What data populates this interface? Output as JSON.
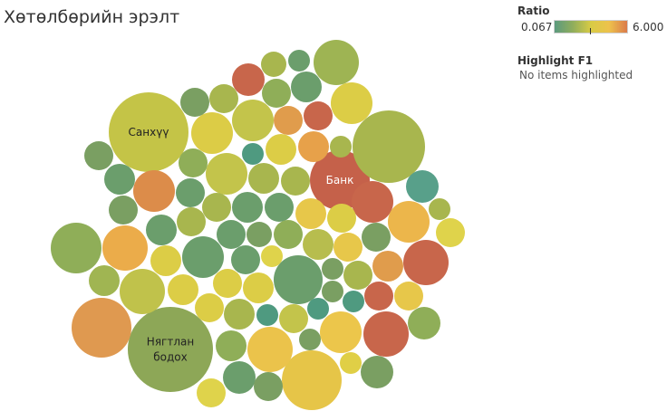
{
  "title": "Хөтөлбөрийн эрэлт",
  "legend": {
    "title": "Ratio",
    "min_label": "0.067",
    "max_label": "6.000",
    "colors": [
      "#5b9a7e",
      "#8fad5c",
      "#d8cb45",
      "#edc24c",
      "#db7b4b"
    ]
  },
  "highlight": {
    "title": "Highlight F1",
    "text": "No items highlighted"
  },
  "chart_data": {
    "type": "packed-bubble",
    "title": "Хөтөлбөрийн эрэлт",
    "color_measure": "Ratio",
    "color_range": [
      0.067,
      6.0
    ],
    "labeled_bubbles": [
      {
        "label": "Санхүү",
        "color": "#c4c447"
      },
      {
        "label": "Банк",
        "color": "#c5614a"
      },
      {
        "label": "Нягтлан бодох",
        "color": "#8da757"
      }
    ],
    "bubbles": [
      [
        164,
        146,
        44,
        "#c4c447",
        "Санхүү"
      ],
      [
        375,
        199,
        33,
        "#c5614a",
        "Банк"
      ],
      [
        188,
        386,
        47,
        "#8da757",
        "Нягтлан бодох"
      ],
      [
        429,
        162,
        40,
        "#a8b64e",
        ""
      ],
      [
        112,
        362,
        33,
        "#df9950",
        ""
      ],
      [
        344,
        420,
        33,
        "#e6c548",
        ""
      ],
      [
        84,
        274,
        28,
        "#8fae58",
        ""
      ],
      [
        329,
        309,
        27,
        "#6b9e6c",
        ""
      ],
      [
        371,
        69,
        25,
        "#9eb453",
        ""
      ],
      [
        388,
        114,
        23,
        "#dccd46",
        ""
      ],
      [
        470,
        290,
        25,
        "#c8664b",
        ""
      ],
      [
        411,
        223,
        23,
        "#c8664b",
        ""
      ],
      [
        451,
        245,
        23,
        "#ecb64b",
        ""
      ],
      [
        426,
        369,
        25,
        "#c8664b",
        ""
      ],
      [
        170,
        211,
        23,
        "#dc8c4a",
        ""
      ],
      [
        138,
        274,
        25,
        "#ebac4a",
        ""
      ],
      [
        157,
        322,
        25,
        "#c0c24b",
        ""
      ],
      [
        234,
        147,
        23,
        "#dccc46",
        ""
      ],
      [
        250,
        192,
        23,
        "#c3c44b",
        ""
      ],
      [
        224,
        284,
        23,
        "#6b9e6c",
        ""
      ],
      [
        279,
        133,
        23,
        "#c3c44b",
        ""
      ],
      [
        298,
        386,
        25,
        "#ebc34b",
        ""
      ],
      [
        376,
        367,
        23,
        "#ecc64b",
        ""
      ],
      [
        466,
        206,
        18,
        "#58a08a",
        ""
      ],
      [
        497,
        257,
        16,
        "#dfd34b",
        ""
      ],
      [
        468,
        357,
        18,
        "#8fae58",
        ""
      ],
      [
        416,
        411,
        18,
        "#7a9f62",
        ""
      ],
      [
        387,
        401,
        12,
        "#e0cf46",
        ""
      ],
      [
        264,
        417,
        18,
        "#6b9e6c",
        ""
      ],
      [
        233,
        434,
        16,
        "#dfd34b",
        ""
      ],
      [
        296,
        427,
        16,
        "#7a9f62",
        ""
      ],
      [
        342,
        375,
        12,
        "#7a9f62",
        ""
      ],
      [
        274,
        88,
        18,
        "#c8664b",
        ""
      ],
      [
        302,
        71,
        14,
        "#a8b64e",
        ""
      ],
      [
        330,
        67,
        12,
        "#6b9e6c",
        ""
      ],
      [
        338,
        96,
        17,
        "#6b9e6c",
        ""
      ],
      [
        305,
        103,
        16,
        "#8fae58",
        ""
      ],
      [
        318,
        133,
        16,
        "#e09c4c",
        ""
      ],
      [
        351,
        128,
        16,
        "#c8664b",
        ""
      ],
      [
        310,
        165,
        17,
        "#dccd46",
        ""
      ],
      [
        346,
        162,
        17,
        "#e7a14a",
        ""
      ],
      [
        376,
        162,
        12,
        "#a8b64e",
        ""
      ],
      [
        279,
        170,
        12,
        "#4f9a80",
        ""
      ],
      [
        215,
        113,
        16,
        "#7a9f62",
        ""
      ],
      [
        247,
        109,
        16,
        "#a8b64e",
        ""
      ],
      [
        213,
        180,
        16,
        "#8fae58",
        ""
      ],
      [
        109,
        172,
        16,
        "#7a9f62",
        ""
      ],
      [
        132,
        198,
        17,
        "#6b9e6c",
        ""
      ],
      [
        136,
        232,
        16,
        "#7a9f62",
        ""
      ],
      [
        210,
        213,
        16,
        "#6b9e6c",
        ""
      ],
      [
        178,
        254,
        17,
        "#6b9e6c",
        ""
      ],
      [
        211,
        245,
        16,
        "#a8b64e",
        ""
      ],
      [
        183,
        288,
        17,
        "#dccd46",
        ""
      ],
      [
        115,
        310,
        17,
        "#a0b552",
        ""
      ],
      [
        202,
        320,
        17,
        "#dccd46",
        ""
      ],
      [
        231,
        340,
        16,
        "#dccd46",
        ""
      ],
      [
        239,
        229,
        16,
        "#a8b64e",
        ""
      ],
      [
        273,
        229,
        17,
        "#6b9e6c",
        ""
      ],
      [
        291,
        197,
        17,
        "#a8b64e",
        ""
      ],
      [
        326,
        200,
        16,
        "#a8b64e",
        ""
      ],
      [
        308,
        229,
        16,
        "#6b9e6c",
        ""
      ],
      [
        343,
        236,
        17,
        "#e7c74a",
        ""
      ],
      [
        377,
        241,
        16,
        "#dccd46",
        ""
      ],
      [
        255,
        259,
        16,
        "#6b9e6c",
        ""
      ],
      [
        286,
        259,
        14,
        "#7a9f62",
        ""
      ],
      [
        318,
        259,
        16,
        "#8fae58",
        ""
      ],
      [
        351,
        270,
        17,
        "#b7bd4e",
        ""
      ],
      [
        384,
        273,
        16,
        "#e7c74a",
        ""
      ],
      [
        415,
        262,
        16,
        "#7a9f62",
        ""
      ],
      [
        271,
        287,
        16,
        "#6b9e6c",
        ""
      ],
      [
        300,
        283,
        12,
        "#dfd34b",
        ""
      ],
      [
        367,
        297,
        12,
        "#7a9f62",
        ""
      ],
      [
        395,
        304,
        16,
        "#a8b64e",
        ""
      ],
      [
        428,
        294,
        17,
        "#e09c4c",
        ""
      ],
      [
        251,
        313,
        16,
        "#dccd46",
        ""
      ],
      [
        285,
        318,
        17,
        "#dccd46",
        ""
      ],
      [
        367,
        322,
        12,
        "#7a9f62",
        ""
      ],
      [
        390,
        333,
        12,
        "#4f9a80",
        ""
      ],
      [
        418,
        327,
        16,
        "#c8664b",
        ""
      ],
      [
        451,
        327,
        16,
        "#e7c74a",
        ""
      ],
      [
        264,
        347,
        17,
        "#a8b64e",
        ""
      ],
      [
        295,
        348,
        12,
        "#4f9a80",
        ""
      ],
      [
        324,
        352,
        16,
        "#c3c44b",
        ""
      ],
      [
        351,
        341,
        12,
        "#4f9a80",
        ""
      ],
      [
        255,
        382,
        17,
        "#8fae58",
        ""
      ],
      [
        485,
        231,
        12,
        "#a8b64e",
        ""
      ]
    ]
  }
}
